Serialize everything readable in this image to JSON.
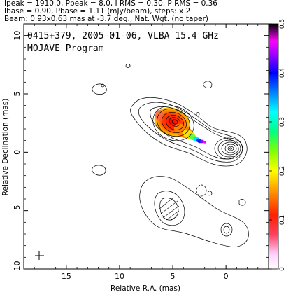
{
  "header": {
    "line1": "Ipeak = 1910.0, Ppeak = 8.0, I RMS = 0.30, P RMS = 0.36",
    "line2": "Ibase = 0.90, Pbase = 1.11 (mJy/beam), steps: x 2",
    "line3": "Beam: 0.93x0.63 mas at -3.7 deg., Nat. Wgt. (no taper)"
  },
  "inset": {
    "line1": "0415+379, 2005-01-06, VLBA 15.4 GHz",
    "line2": "MOJAVE Program"
  },
  "chart_data": {
    "type": "heatmap",
    "description_note": "",
    "xlabel": "Relative R.A. (mas)",
    "ylabel": "Relative Declination (mas)",
    "xlim": [
      19.0,
      -4.0
    ],
    "ylim": [
      -10.0,
      11.0
    ],
    "xticks": [
      15,
      10,
      5,
      0
    ],
    "yticks": [
      10,
      5,
      0,
      -5,
      -10
    ],
    "colorbar": {
      "min": 0,
      "max": 0.5,
      "ticks": [
        "0",
        "0.1",
        "0.2",
        "0.3",
        "0.4",
        "0.5"
      ],
      "colors": [
        "#ffffff",
        "#ff7fff",
        "#ff0000",
        "#ff8000",
        "#ffff00",
        "#80ff00",
        "#00ff80",
        "#00ffff",
        "#0080ff",
        "#0000ff",
        "#8000ff",
        "#ff00ff",
        "#000000"
      ]
    },
    "beam": {
      "major_mas": 0.93,
      "minor_mas": 0.63,
      "pa_deg": -3.7
    },
    "contour_base_mJy": 0.9,
    "contour_step": 2
  }
}
